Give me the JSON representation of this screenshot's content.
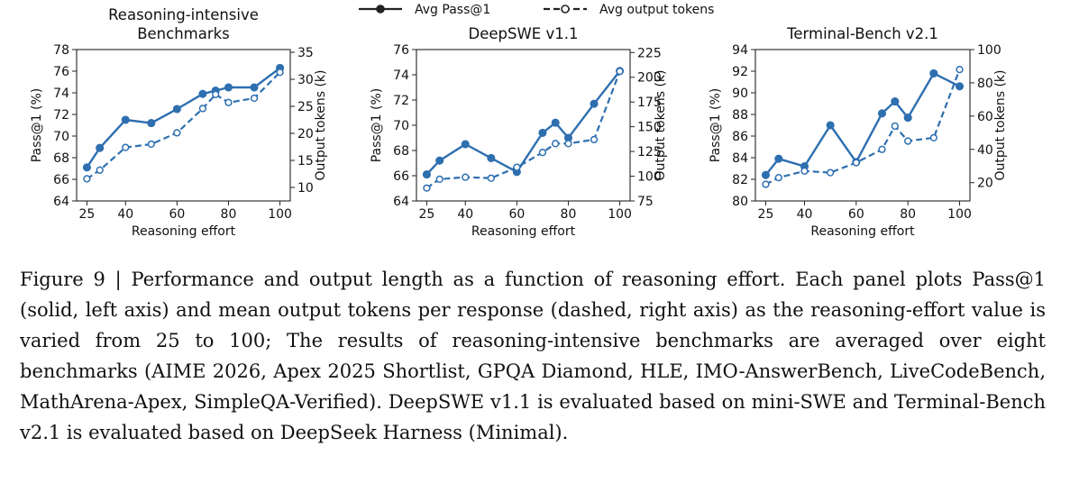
{
  "legend": {
    "items": [
      {
        "label": "Avg Pass@1",
        "style": "solid",
        "marker": "filled"
      },
      {
        "label": "Avg output tokens",
        "style": "dashed",
        "marker": "hollow"
      }
    ]
  },
  "colors": {
    "series": "#2E6FB0",
    "axis": "#222222"
  },
  "chart_data": [
    {
      "type": "line",
      "title": "Reasoning-intensive\nBenchmarks",
      "xlabel": "Reasoning effort",
      "ylabel": "Pass@1 (%)",
      "y2label": "Output tokens (k)",
      "xlim": [
        21,
        104
      ],
      "ylim": [
        64,
        78
      ],
      "y2lim": [
        7.5,
        35.5
      ],
      "xticks": [
        25,
        40,
        60,
        80,
        100
      ],
      "yticks": [
        64,
        66,
        68,
        70,
        72,
        74,
        76,
        78
      ],
      "y2ticks": [
        10,
        15,
        20,
        25,
        30,
        35
      ],
      "series": [
        {
          "name": "Avg Pass@1",
          "axis": "left",
          "style": "solid",
          "x": [
            25,
            30,
            40,
            50,
            60,
            70,
            75,
            80,
            90,
            100
          ],
          "y": [
            67.1,
            68.9,
            71.5,
            71.2,
            72.5,
            73.9,
            74.2,
            74.5,
            74.5,
            76.3
          ]
        },
        {
          "name": "Avg output tokens",
          "axis": "right",
          "style": "dashed",
          "x": [
            25,
            30,
            40,
            50,
            60,
            70,
            75,
            80,
            90,
            100
          ],
          "y": [
            11.6,
            13.2,
            17.4,
            18.0,
            20.1,
            24.6,
            27.2,
            25.7,
            26.5,
            31.3
          ]
        }
      ]
    },
    {
      "type": "line",
      "title": "DeepSWE v1.1",
      "xlabel": "Reasoning effort",
      "ylabel": "Pass@1 (%)",
      "y2label": "Output tokens (k)",
      "xlim": [
        21,
        104
      ],
      "ylim": [
        64,
        76
      ],
      "y2lim": [
        75,
        228
      ],
      "xticks": [
        25,
        40,
        60,
        80,
        100
      ],
      "yticks": [
        64,
        66,
        68,
        70,
        72,
        74,
        76
      ],
      "y2ticks": [
        75,
        100,
        125,
        150,
        175,
        200,
        225
      ],
      "series": [
        {
          "name": "Avg Pass@1",
          "axis": "left",
          "style": "solid",
          "x": [
            25,
            30,
            40,
            50,
            60,
            70,
            75,
            80,
            90,
            100
          ],
          "y": [
            66.1,
            67.2,
            68.5,
            67.4,
            66.3,
            69.4,
            70.2,
            69.0,
            71.7,
            74.3
          ]
        },
        {
          "name": "Avg output tokens",
          "axis": "right",
          "style": "dashed",
          "x": [
            25,
            30,
            40,
            50,
            60,
            70,
            75,
            80,
            90,
            100
          ],
          "y": [
            88,
            97,
            99,
            98,
            109,
            124,
            133,
            133,
            137,
            206
          ]
        }
      ]
    },
    {
      "type": "line",
      "title": "Terminal-Bench v2.1",
      "xlabel": "Reasoning effort",
      "ylabel": "Pass@1 (%)",
      "y2label": "Output tokens (k)",
      "xlim": [
        21,
        104
      ],
      "ylim": [
        80,
        94
      ],
      "y2lim": [
        9,
        100
      ],
      "xticks": [
        25,
        40,
        60,
        80,
        100
      ],
      "yticks": [
        80,
        82,
        84,
        86,
        88,
        90,
        92,
        94
      ],
      "y2ticks": [
        20,
        40,
        60,
        80,
        100
      ],
      "series": [
        {
          "name": "Avg Pass@1",
          "axis": "left",
          "style": "solid",
          "x": [
            25,
            30,
            40,
            50,
            60,
            70,
            75,
            80,
            90,
            100
          ],
          "y": [
            82.4,
            83.9,
            83.2,
            87.0,
            83.6,
            88.1,
            89.2,
            87.7,
            91.8,
            90.6
          ]
        },
        {
          "name": "Avg output tokens",
          "axis": "right",
          "style": "dashed",
          "x": [
            25,
            30,
            40,
            50,
            60,
            70,
            75,
            80,
            90,
            100
          ],
          "y": [
            19,
            23,
            27,
            26,
            32,
            40,
            54,
            45,
            47,
            88
          ]
        }
      ]
    }
  ],
  "caption": {
    "label": "Figure 9 | ",
    "text": "Performance and output length as a function of reasoning effort. Each panel plots Pass@1 (solid, left axis) and mean output tokens per response (dashed, right axis) as the reasoning-effort value is varied from 25 to 100; The results of reasoning-intensive benchmarks are averaged over eight benchmarks (AIME 2026, Apex 2025 Shortlist, GPQA Diamond, HLE, IMO-AnswerBench, LiveCodeBench, MathArena-Apex, SimpleQA-Verified). DeepSWE v1.1 is evaluated based on mini-SWE and Terminal-Bench v2.1 is evaluated based on DeepSeek Harness (Minimal)."
  }
}
